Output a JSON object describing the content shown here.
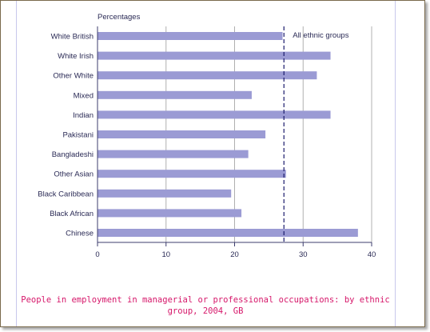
{
  "caption": "People in employment in managerial or professional occupations: by ethnic group, 2004, GB",
  "colors": {
    "bar": "#9b9bd4",
    "axis": "#3c3c6e",
    "grid": "#b0b0b0",
    "reference_line": "#1c1c6c",
    "caption": "#d6176a"
  },
  "chart_data": {
    "type": "bar",
    "orientation": "horizontal",
    "title": "",
    "xlabel": "",
    "ylabel": "Percentages",
    "categories": [
      "White British",
      "White Irish",
      "Other White",
      "Mixed",
      "Indian",
      "Pakistani",
      "Bangladeshi",
      "Other Asian",
      "Black Caribbean",
      "Black African",
      "Chinese"
    ],
    "values": [
      27,
      34,
      32,
      22.5,
      34,
      24.5,
      22,
      27.5,
      19.5,
      21,
      38
    ],
    "xlim": [
      0,
      40
    ],
    "x_ticks": [
      0,
      10,
      20,
      30,
      40
    ],
    "grid": true,
    "reference_line": {
      "value": 27.2,
      "label": "All ethnic groups",
      "style": "dashed"
    }
  }
}
